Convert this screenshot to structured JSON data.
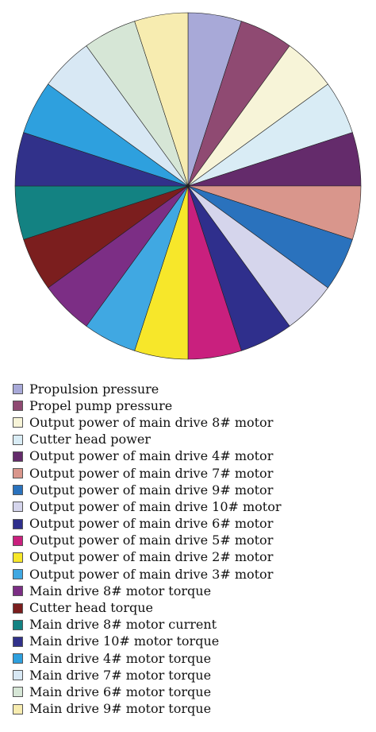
{
  "chart_data": {
    "type": "pie",
    "title": "",
    "start": "top",
    "direction": "clockwise",
    "legend_placement": "bottom-left",
    "series": [
      {
        "label": "Propulsion pressure",
        "value": 1,
        "color": "#a8a9d8"
      },
      {
        "label": "Propel pump pressure",
        "value": 1,
        "color": "#8f4a72"
      },
      {
        "label": "Output power of main drive 8# motor",
        "value": 1,
        "color": "#f7f4d8"
      },
      {
        "label": "Cutter head power",
        "value": 1,
        "color": "#d9ecf5"
      },
      {
        "label": "Output power of main drive 4# motor",
        "value": 1,
        "color": "#642b6b"
      },
      {
        "label": "Output power of main drive 7# motor",
        "value": 1,
        "color": "#d9968c"
      },
      {
        "label": "Output power of main drive 9# motor",
        "value": 1,
        "color": "#2a72bd"
      },
      {
        "label": "Output power of main drive 10# motor",
        "value": 1,
        "color": "#d5d5ec"
      },
      {
        "label": "Output power of main drive 6# motor",
        "value": 1,
        "color": "#2f2f8c"
      },
      {
        "label": "Output power of main drive 5# motor",
        "value": 1,
        "color": "#c9207e"
      },
      {
        "label": "Output power of main drive 2# motor",
        "value": 1,
        "color": "#f7e72a"
      },
      {
        "label": "Output power of main drive 3# motor",
        "value": 1,
        "color": "#40a8e2"
      },
      {
        "label": "Main drive 8# motor torque",
        "value": 1,
        "color": "#7c2e85"
      },
      {
        "label": "Cutter head torque",
        "value": 1,
        "color": "#7b1e1e"
      },
      {
        "label": "Main drive 8# motor current",
        "value": 1,
        "color": "#138282"
      },
      {
        "label": "Main drive 10# motor torque",
        "value": 1,
        "color": "#31318a"
      },
      {
        "label": "Main drive 4# motor torque",
        "value": 1,
        "color": "#2ea0de"
      },
      {
        "label": "Main drive 7# motor torque",
        "value": 1,
        "color": "#d8e8f4"
      },
      {
        "label": "Main drive 6# motor torque",
        "value": 1,
        "color": "#d6e6d6"
      },
      {
        "label": "Main drive 9# motor torque",
        "value": 1,
        "color": "#f7ecb0"
      }
    ],
    "slice_order": [
      0,
      1,
      2,
      3,
      4,
      5,
      6,
      7,
      8,
      9,
      10,
      11,
      12,
      13,
      14,
      15,
      16,
      17,
      18,
      19
    ]
  }
}
